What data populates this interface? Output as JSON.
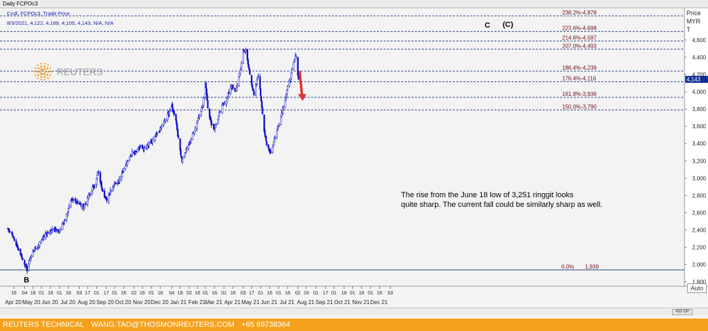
{
  "window_title": "Daily FCPOc3",
  "legend": {
    "line1": "Cndl, FCPOc3, Trade Price",
    "line2": "8/3/2021, 4,122, 4,189, 4,105, 4,143, N/A, N/A"
  },
  "axis_header": {
    "line1": "Price",
    "line2": "MYR",
    "line3": "T"
  },
  "logo_text": "REUTERS",
  "annotation": {
    "line1": "The rise from the June 18 low of 3,251 ringgit looks",
    "line2": "quite sharp. The current fall could be similarly sharp as well."
  },
  "wave_labels": {
    "b": "B",
    "c": "C",
    "c_paren": "(C)"
  },
  "last_price_tag": "4,143",
  "auto_label": "Auto",
  "scroll_box_label": "433 DP",
  "footer": {
    "label": "REUTERS TECHNICAL",
    "email": "WANG.TAO@THOSMONREUTERS.COM",
    "phone": "+65 69738364"
  },
  "colors": {
    "candle": "#1010c8",
    "fib_line": "#2c4a8c",
    "fib_label": "#6b0f1a",
    "arrow": "#e03030",
    "footer_bg": "#f5a11d"
  },
  "chart_data": {
    "type": "candlestick",
    "title": "Daily FCPOc3",
    "ylabel": "Price MYR",
    "ylim": [
      1750,
      4950
    ],
    "yticks": [
      "1,800",
      "2,000",
      "2,200",
      "2,400",
      "2,600",
      "2,800",
      "3,000",
      "3,200",
      "3,400",
      "3,600",
      "3,800",
      "4,000",
      "4,200",
      "4,400",
      "4,600"
    ],
    "xaxis": {
      "day_ticks": [
        {
          "date": "2020-04-16",
          "label": "16"
        },
        {
          "date": "2020-05-04",
          "label": "04"
        },
        {
          "date": "2020-05-18",
          "label": "18"
        },
        {
          "date": "2020-06-01",
          "label": "01"
        },
        {
          "date": "2020-06-16",
          "label": "16"
        },
        {
          "date": "2020-07-01",
          "label": "01"
        },
        {
          "date": "2020-07-16",
          "label": "16"
        },
        {
          "date": "2020-08-03",
          "label": "03"
        },
        {
          "date": "2020-08-17",
          "label": "17"
        },
        {
          "date": "2020-09-01",
          "label": "01"
        },
        {
          "date": "2020-09-17",
          "label": "17"
        },
        {
          "date": "2020-10-01",
          "label": "01"
        },
        {
          "date": "2020-10-16",
          "label": "16"
        },
        {
          "date": "2020-11-02",
          "label": "02"
        },
        {
          "date": "2020-11-16",
          "label": "16"
        },
        {
          "date": "2020-12-01",
          "label": "01"
        },
        {
          "date": "2020-12-16",
          "label": "16"
        },
        {
          "date": "2021-01-04",
          "label": "04"
        },
        {
          "date": "2021-01-18",
          "label": "18"
        },
        {
          "date": "2021-02-02",
          "label": "02"
        },
        {
          "date": "2021-02-16",
          "label": "16"
        },
        {
          "date": "2021-03-01",
          "label": "01"
        },
        {
          "date": "2021-03-16",
          "label": "16"
        },
        {
          "date": "2021-04-01",
          "label": "01"
        },
        {
          "date": "2021-04-16",
          "label": "16"
        },
        {
          "date": "2021-05-03",
          "label": "03"
        },
        {
          "date": "2021-05-17",
          "label": "17"
        },
        {
          "date": "2021-06-01",
          "label": "01"
        },
        {
          "date": "2021-06-16",
          "label": "16"
        },
        {
          "date": "2021-07-01",
          "label": "01"
        },
        {
          "date": "2021-07-16",
          "label": "16"
        },
        {
          "date": "2021-08-02",
          "label": "02"
        },
        {
          "date": "2021-08-16",
          "label": "16"
        },
        {
          "date": "2021-09-01",
          "label": "01"
        },
        {
          "date": "2021-09-17",
          "label": "17"
        },
        {
          "date": "2021-10-01",
          "label": "01"
        },
        {
          "date": "2021-10-18",
          "label": "18"
        },
        {
          "date": "2021-11-01",
          "label": "01"
        },
        {
          "date": "2021-11-16",
          "label": "16"
        },
        {
          "date": "2021-12-01",
          "label": "01"
        },
        {
          "date": "2021-12-16",
          "label": "16"
        },
        {
          "date": "2022-01-03",
          "label": "03"
        }
      ],
      "month_labels": [
        {
          "date": "2020-04-15",
          "label": "Apr 20"
        },
        {
          "date": "2020-05-15",
          "label": "May 20"
        },
        {
          "date": "2020-06-15",
          "label": "Jun 20"
        },
        {
          "date": "2020-07-15",
          "label": "Jul 20"
        },
        {
          "date": "2020-08-15",
          "label": "Aug 20"
        },
        {
          "date": "2020-09-15",
          "label": "Sep 20"
        },
        {
          "date": "2020-10-15",
          "label": "Oct 20"
        },
        {
          "date": "2020-11-15",
          "label": "Nov 20"
        },
        {
          "date": "2020-12-15",
          "label": "Dec 20"
        },
        {
          "date": "2021-01-15",
          "label": "Jan 21"
        },
        {
          "date": "2021-02-15",
          "label": "Feb 21"
        },
        {
          "date": "2021-03-15",
          "label": "Mar 21"
        },
        {
          "date": "2021-04-15",
          "label": "Apr 21"
        },
        {
          "date": "2021-05-15",
          "label": "May 21"
        },
        {
          "date": "2021-06-15",
          "label": "Jun 21"
        },
        {
          "date": "2021-07-15",
          "label": "Jul 21"
        },
        {
          "date": "2021-08-15",
          "label": "Aug 21"
        },
        {
          "date": "2021-09-15",
          "label": "Sep 21"
        },
        {
          "date": "2021-10-15",
          "label": "Oct 21"
        },
        {
          "date": "2021-11-15",
          "label": "Nov 21"
        },
        {
          "date": "2021-12-15",
          "label": "Dec 21"
        }
      ]
    },
    "fib_levels": [
      {
        "label": "238.2%",
        "value": 4878,
        "text": "4,878"
      },
      {
        "label": "223.6%",
        "value": 4698,
        "text": "4,698"
      },
      {
        "label": "214.6%",
        "value": 4587,
        "text": "4,587"
      },
      {
        "label": "207.0%",
        "value": 4493,
        "text": "4,493"
      },
      {
        "label": "186.4%",
        "value": 4239,
        "text": "4,239"
      },
      {
        "label": "176.4%",
        "value": 4116,
        "text": "4,116"
      },
      {
        "label": "161.8%",
        "value": 3936,
        "text": "3,936"
      },
      {
        "label": "150.0%",
        "value": 3790,
        "text": "3,790"
      },
      {
        "label": "0.0%",
        "value": 1939,
        "text": "1,939"
      }
    ],
    "close_path": [
      {
        "date": "2020-04-06",
        "close": 2420
      },
      {
        "date": "2020-04-13",
        "close": 2350
      },
      {
        "date": "2020-04-20",
        "close": 2230
      },
      {
        "date": "2020-04-27",
        "close": 2130
      },
      {
        "date": "2020-05-04",
        "close": 2010
      },
      {
        "date": "2020-05-08",
        "close": 1939
      },
      {
        "date": "2020-05-12",
        "close": 2040
      },
      {
        "date": "2020-05-18",
        "close": 2150
      },
      {
        "date": "2020-05-25",
        "close": 2200
      },
      {
        "date": "2020-06-01",
        "close": 2290
      },
      {
        "date": "2020-06-08",
        "close": 2350
      },
      {
        "date": "2020-06-15",
        "close": 2380
      },
      {
        "date": "2020-06-22",
        "close": 2430
      },
      {
        "date": "2020-06-29",
        "close": 2360
      },
      {
        "date": "2020-07-06",
        "close": 2460
      },
      {
        "date": "2020-07-13",
        "close": 2580
      },
      {
        "date": "2020-07-20",
        "close": 2720
      },
      {
        "date": "2020-07-27",
        "close": 2760
      },
      {
        "date": "2020-08-03",
        "close": 2700
      },
      {
        "date": "2020-08-10",
        "close": 2660
      },
      {
        "date": "2020-08-17",
        "close": 2760
      },
      {
        "date": "2020-08-24",
        "close": 2870
      },
      {
        "date": "2020-08-31",
        "close": 2950
      },
      {
        "date": "2020-09-03",
        "close": 3070
      },
      {
        "date": "2020-09-10",
        "close": 2880
      },
      {
        "date": "2020-09-17",
        "close": 2740
      },
      {
        "date": "2020-09-24",
        "close": 2860
      },
      {
        "date": "2020-10-01",
        "close": 2940
      },
      {
        "date": "2020-10-08",
        "close": 2980
      },
      {
        "date": "2020-10-15",
        "close": 3090
      },
      {
        "date": "2020-10-22",
        "close": 3180
      },
      {
        "date": "2020-10-29",
        "close": 3290
      },
      {
        "date": "2020-11-05",
        "close": 3310
      },
      {
        "date": "2020-11-12",
        "close": 3360
      },
      {
        "date": "2020-11-19",
        "close": 3340
      },
      {
        "date": "2020-11-26",
        "close": 3380
      },
      {
        "date": "2020-12-03",
        "close": 3430
      },
      {
        "date": "2020-12-10",
        "close": 3500
      },
      {
        "date": "2020-12-17",
        "close": 3580
      },
      {
        "date": "2020-12-24",
        "close": 3670
      },
      {
        "date": "2021-01-04",
        "close": 3830
      },
      {
        "date": "2021-01-11",
        "close": 3680
      },
      {
        "date": "2021-01-15",
        "close": 3450
      },
      {
        "date": "2021-01-21",
        "close": 3200
      },
      {
        "date": "2021-01-28",
        "close": 3320
      },
      {
        "date": "2021-02-04",
        "close": 3430
      },
      {
        "date": "2021-02-11",
        "close": 3560
      },
      {
        "date": "2021-02-18",
        "close": 3720
      },
      {
        "date": "2021-02-25",
        "close": 3840
      },
      {
        "date": "2021-03-01",
        "close": 4120
      },
      {
        "date": "2021-03-05",
        "close": 3830
      },
      {
        "date": "2021-03-10",
        "close": 3650
      },
      {
        "date": "2021-03-16",
        "close": 3560
      },
      {
        "date": "2021-03-23",
        "close": 3720
      },
      {
        "date": "2021-03-30",
        "close": 3850
      },
      {
        "date": "2021-04-06",
        "close": 3920
      },
      {
        "date": "2021-04-13",
        "close": 4080
      },
      {
        "date": "2021-04-20",
        "close": 4000
      },
      {
        "date": "2021-04-27",
        "close": 4200
      },
      {
        "date": "2021-05-03",
        "close": 4470
      },
      {
        "date": "2021-05-07",
        "close": 4470
      },
      {
        "date": "2021-05-12",
        "close": 4280
      },
      {
        "date": "2021-05-17",
        "close": 4100
      },
      {
        "date": "2021-05-21",
        "close": 3950
      },
      {
        "date": "2021-05-25",
        "close": 4100
      },
      {
        "date": "2021-05-28",
        "close": 4200
      },
      {
        "date": "2021-06-02",
        "close": 3900
      },
      {
        "date": "2021-06-07",
        "close": 3550
      },
      {
        "date": "2021-06-11",
        "close": 3380
      },
      {
        "date": "2021-06-18",
        "close": 3300
      },
      {
        "date": "2021-06-24",
        "close": 3450
      },
      {
        "date": "2021-07-01",
        "close": 3620
      },
      {
        "date": "2021-07-07",
        "close": 3780
      },
      {
        "date": "2021-07-13",
        "close": 3960
      },
      {
        "date": "2021-07-19",
        "close": 4120
      },
      {
        "date": "2021-07-25",
        "close": 4300
      },
      {
        "date": "2021-07-30",
        "close": 4430
      },
      {
        "date": "2021-08-02",
        "close": 4200
      },
      {
        "date": "2021-08-03",
        "close": 4143
      }
    ],
    "extremes": {
      "low_date": "2020-05-08",
      "low": 1939,
      "june_low": 3251,
      "high": 4493
    },
    "forecast_arrow": {
      "from_date": "2021-08-05",
      "from": 4230,
      "to_date": "2021-08-09",
      "to": 3910
    }
  }
}
